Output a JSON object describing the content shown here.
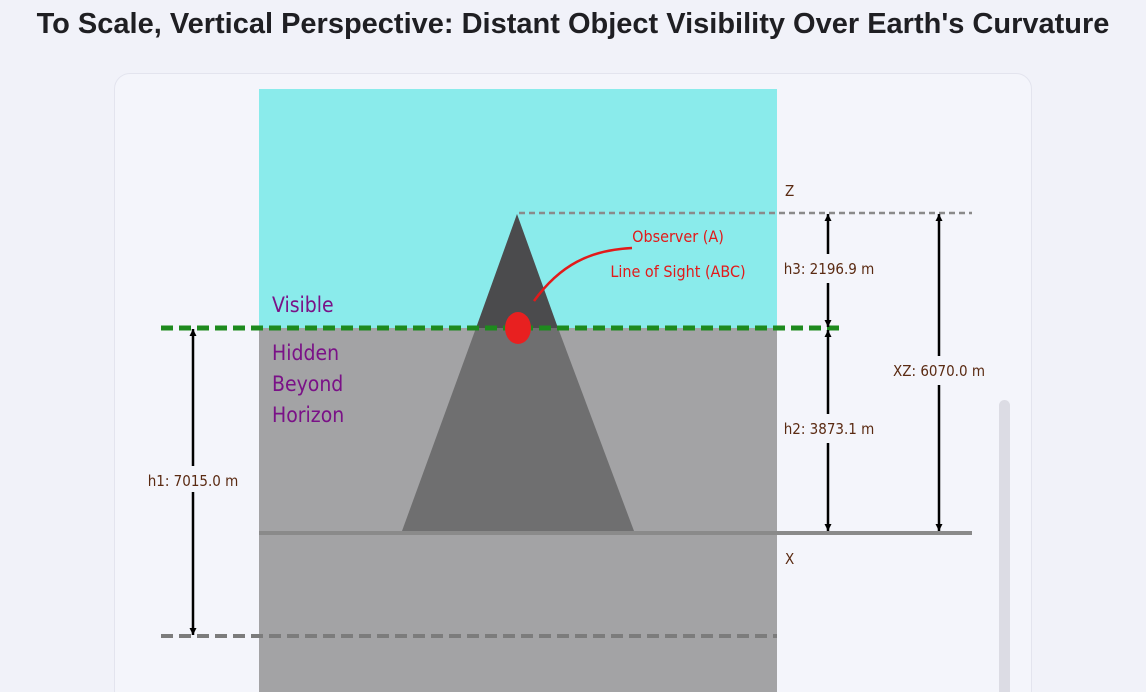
{
  "title": "To Scale, Vertical Perspective: Distant Object Visibility Over Earth's Curvature",
  "zones": {
    "visible": "Visible",
    "hidden": [
      "Hidden",
      "Beyond",
      "Horizon"
    ]
  },
  "observer": {
    "label": "Observer (A)",
    "line_of_sight": "Line of Sight (ABC)"
  },
  "points": {
    "z": "Z",
    "x": "X"
  },
  "measurements": {
    "h1": "h1: 7015.0 m",
    "h2": "h2: 3873.1 m",
    "h3": "h3: 2196.9 m",
    "xz": "XZ: 6070.0 m"
  },
  "colors": {
    "sky": "#8aebeb",
    "hidden_zone": "#a3a3a5",
    "mountain_visible": "#4b4b4d",
    "mountain_hidden": "#6f6f70",
    "horizon_line": "#1e8a1e",
    "observer_dot": "#e82020",
    "zone_label": "#7a1187",
    "measure_label": "#5a2a12"
  }
}
